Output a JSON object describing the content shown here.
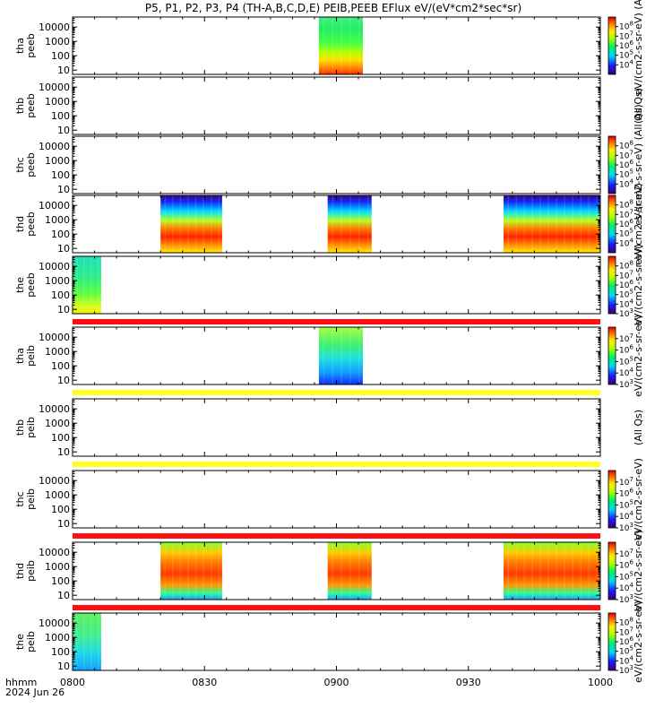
{
  "title": "P5, P1, P2, P3, P4 (TH-A,B,C,D,E) PEIB,PEEB EFlux eV/(eV*cm2*sec*sr)",
  "chart_data": {
    "type": "heatmap",
    "x_range": [
      "0800",
      "1000"
    ],
    "x_ticks": [
      {
        "label": "0800",
        "minutes": 0
      },
      {
        "label": "0830",
        "minutes": 30
      },
      {
        "label": "0900",
        "minutes": 60
      },
      {
        "label": "0930",
        "minutes": 90
      },
      {
        "label": "1000",
        "minutes": 120
      }
    ],
    "x_caption": [
      "hhmm",
      "2024 Jun 26"
    ],
    "y_scale": "log",
    "y_ticks": [
      {
        "label": "10000",
        "value": 10000
      },
      {
        "label": "1000",
        "value": 1000
      },
      {
        "label": "100",
        "value": 100
      },
      {
        "label": "10",
        "value": 10
      }
    ],
    "panels": [
      {
        "id": "tha-peeb",
        "label": [
          "tha",
          "peeb"
        ],
        "ylim": [
          5,
          50000
        ],
        "blocks": [
          {
            "start": 56,
            "end": 66,
            "style": "ion"
          }
        ],
        "colorbar": {
          "ticks": [
            "8",
            "7",
            "6",
            "5",
            "4"
          ],
          "min_exp": 3,
          "max_exp": 9
        },
        "units": "eV/(cm2-s-sr-eV) (Al"
      },
      {
        "id": "thb-peeb",
        "label": [
          "thb",
          "peeb"
        ],
        "ylim": [
          5,
          50000
        ],
        "blocks": [],
        "colorbar": null,
        "units": "(All Qs)"
      },
      {
        "id": "thc-peeb",
        "label": [
          "thc",
          "peeb"
        ],
        "ylim": [
          5,
          50000
        ],
        "blocks": [],
        "colorbar": {
          "ticks": [
            "8",
            "7",
            "6",
            "5",
            "4"
          ],
          "min_exp": 3,
          "max_exp": 9
        },
        "units": "eV/(cm2-s-sr-eV) (All Qs)"
      },
      {
        "id": "thd-peeb",
        "label": [
          "thd",
          "peeb"
        ],
        "ylim": [
          5,
          50000
        ],
        "blocks": [
          {
            "start": 20,
            "end": 34,
            "style": "elec"
          },
          {
            "start": 58,
            "end": 68,
            "style": "elec"
          },
          {
            "start": 98,
            "end": 120,
            "style": "elec"
          }
        ],
        "colorbar": {
          "ticks": [
            "8",
            "7",
            "6",
            "5",
            "4"
          ],
          "min_exp": 3,
          "max_exp": 9
        },
        "units": "eV/(cm2-s-sr-eV)"
      },
      {
        "id": "the-peeb",
        "label": [
          "the",
          "peeb"
        ],
        "ylim": [
          5,
          50000
        ],
        "blocks": [
          {
            "start": 0,
            "end": 6.5,
            "style": "elecE"
          }
        ],
        "colorbar": {
          "ticks": [
            "8",
            "7",
            "6",
            "5",
            "4",
            "3"
          ],
          "min_exp": 3,
          "max_exp": 9
        },
        "units": "eV/(cm2-s-sr-eV)"
      },
      {
        "id": "tha-peib",
        "label": [
          "tha",
          "peib"
        ],
        "ylim": [
          5,
          50000
        ],
        "blocks": [
          {
            "start": 56,
            "end": 66,
            "style": "ionA"
          }
        ],
        "colorbar": {
          "ticks": [
            "7",
            "6",
            "5",
            "4",
            "3"
          ],
          "min_exp": 3,
          "max_exp": 8
        },
        "units": "eV/(cm2-s-sr-eV)"
      },
      {
        "id": "thb-peib",
        "label": [
          "thb",
          "peib"
        ],
        "ylim": [
          5,
          50000
        ],
        "blocks": [],
        "colorbar": null,
        "units": "(All Qs)"
      },
      {
        "id": "thc-peib",
        "label": [
          "thc",
          "peib"
        ],
        "ylim": [
          5,
          50000
        ],
        "blocks": [],
        "colorbar": {
          "ticks": [
            "7",
            "6",
            "5",
            "4",
            "3"
          ],
          "min_exp": 3,
          "max_exp": 8
        },
        "units": "eV/(cm2-s-sr-eV)"
      },
      {
        "id": "thd-peib",
        "label": [
          "thd",
          "peib"
        ],
        "ylim": [
          5,
          50000
        ],
        "blocks": [
          {
            "start": 20,
            "end": 34,
            "style": "ionD"
          },
          {
            "start": 58,
            "end": 68,
            "style": "ionD"
          },
          {
            "start": 98,
            "end": 120,
            "style": "ionD"
          }
        ],
        "colorbar": {
          "ticks": [
            "7",
            "6",
            "5",
            "4",
            "3"
          ],
          "min_exp": 3,
          "max_exp": 8
        },
        "units": "eV/(cm2-s-sr-eV)"
      },
      {
        "id": "the-peib",
        "label": [
          "the",
          "peib"
        ],
        "ylim": [
          5,
          50000
        ],
        "blocks": [
          {
            "start": 0,
            "end": 6.5,
            "style": "ionE"
          }
        ],
        "colorbar": {
          "ticks": [
            "8",
            "7",
            "6",
            "5",
            "4",
            "3"
          ],
          "min_exp": 3,
          "max_exp": 9
        },
        "units": "eV/(cm2-s-sr-eV)"
      }
    ],
    "flag_bars": [
      {
        "after_panel": 4,
        "color": "#ff1010"
      },
      {
        "after_panel": 5,
        "color": "#ffff20"
      },
      {
        "after_panel": 6,
        "color": "#ffff20"
      },
      {
        "after_panel": 7,
        "color": "#ff1010"
      },
      {
        "after_panel": 8,
        "color": "#ff1010"
      }
    ],
    "colors": {
      "axis": "#000000",
      "flag_red": "#ff1010",
      "flag_yellow": "#ffff20"
    }
  }
}
